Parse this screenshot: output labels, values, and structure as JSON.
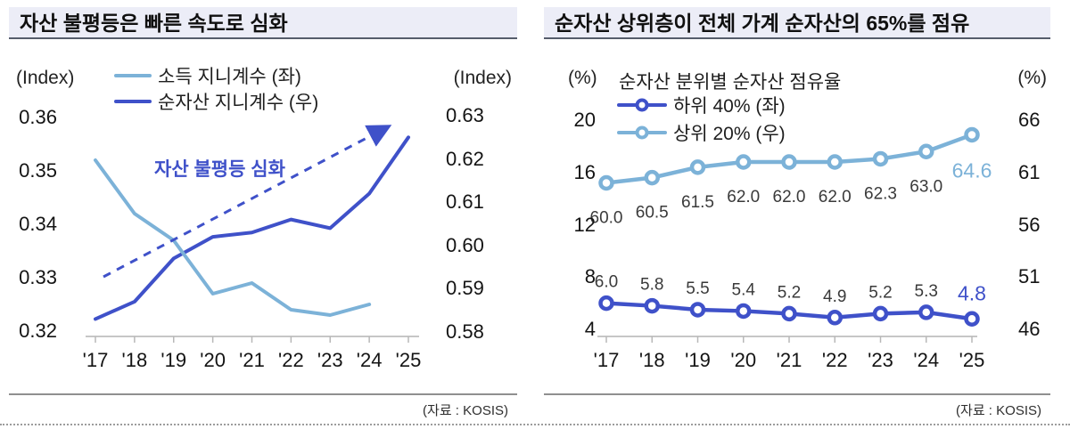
{
  "chart_data": [
    {
      "id": "asset-inequality-gini",
      "type": "line",
      "title": "자산 불평등은 빠른 속도로 심화",
      "left_axis": {
        "unit": "(Index)",
        "tick_labels": [
          "0.36",
          "0.35",
          "0.34",
          "0.33",
          "0.32"
        ],
        "ticks": [
          0.36,
          0.35,
          0.34,
          0.33,
          0.32
        ],
        "min": 0.32,
        "max": 0.36
      },
      "right_axis": {
        "unit": "(Index)",
        "tick_labels": [
          "0.63",
          "0.62",
          "0.61",
          "0.60",
          "0.59",
          "0.58"
        ],
        "ticks": [
          0.63,
          0.62,
          0.61,
          0.6,
          0.59,
          0.58
        ],
        "min": 0.58,
        "max": 0.63
      },
      "x": [
        "'17",
        "'18",
        "'19",
        "'20",
        "'21",
        "'22",
        "'23",
        "'24",
        "'25"
      ],
      "series": [
        {
          "name": "소득 지니계수 (좌)",
          "axis": "left",
          "color": "#7cb2d8",
          "markers": false,
          "values": [
            0.352,
            0.342,
            0.337,
            0.327,
            0.329,
            0.324,
            0.323,
            0.325,
            null
          ]
        },
        {
          "name": "순자산 지니계수 (우)",
          "axis": "right",
          "color": "#3f51c9",
          "markers": false,
          "values": [
            0.583,
            0.587,
            0.597,
            0.602,
            0.603,
            0.606,
            0.604,
            0.612,
            0.625
          ]
        }
      ],
      "annotation": {
        "text": "자산 불평등 심화",
        "color": "#3f51c9"
      },
      "trend_arrow": true,
      "legend_position": "top",
      "grid": false,
      "source": "(자료 : KOSIS)"
    },
    {
      "id": "net-asset-share-by-quintile",
      "type": "line",
      "title": "순자산 상위층이 전체 가계 순자산의 65%를 점유",
      "subtitle": "순자산 분위별 순자산 점유율",
      "left_axis": {
        "unit": "(%)",
        "tick_labels": [
          "20",
          "16",
          "12",
          "8",
          "4"
        ],
        "ticks": [
          20,
          16,
          12,
          8,
          4
        ],
        "min": 4,
        "max": 20
      },
      "right_axis": {
        "unit": "(%)",
        "tick_labels": [
          "66",
          "61",
          "56",
          "51",
          "46"
        ],
        "ticks": [
          66,
          61,
          56,
          51,
          46
        ],
        "min": 46,
        "max": 66
      },
      "x": [
        "'17",
        "'18",
        "'19",
        "'20",
        "'21",
        "'22",
        "'23",
        "'24",
        "'25"
      ],
      "series": [
        {
          "name": "하위 40% (좌)",
          "axis": "left",
          "color": "#3f51c9",
          "markers": true,
          "values": [
            6.0,
            5.8,
            5.5,
            5.4,
            5.2,
            4.9,
            5.2,
            5.3,
            4.8
          ],
          "labels": [
            "6.0",
            "5.8",
            "5.5",
            "5.4",
            "5.2",
            "4.9",
            "5.2",
            "5.3",
            "4.8"
          ],
          "label_pos": "above",
          "highlight_last": true
        },
        {
          "name": "상위 20% (우)",
          "axis": "right",
          "color": "#7cb2d8",
          "markers": true,
          "values": [
            60.0,
            60.5,
            61.5,
            62.0,
            62.0,
            62.0,
            62.3,
            63.0,
            64.6
          ],
          "labels": [
            "60.0",
            "60.5",
            "61.5",
            "62.0",
            "62.0",
            "62.0",
            "62.3",
            "63.0",
            "64.6"
          ],
          "label_pos": "below",
          "highlight_last": true
        }
      ],
      "legend_position": "top",
      "grid": false,
      "source": "(자료 : KOSIS)"
    }
  ]
}
